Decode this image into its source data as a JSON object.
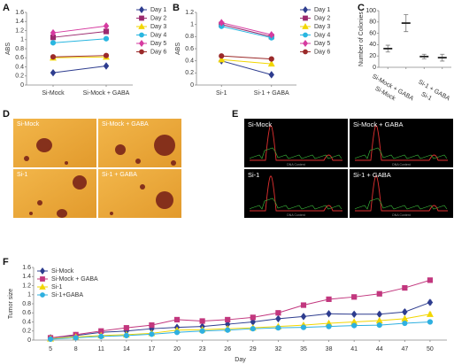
{
  "chart_data": [
    {
      "type": "line",
      "panel_label": "A",
      "y_label": "ABS",
      "categories": [
        "Si-Mock",
        "Si-Mock + GABA"
      ],
      "ylim": [
        0,
        1.6
      ],
      "yticks": [
        0,
        0.2,
        0.4,
        0.6,
        0.8,
        1,
        1.2,
        1.4,
        1.6
      ],
      "legend": "outside right",
      "series": [
        {
          "name": "Day 1",
          "color": "#2e3d8f",
          "marker": "diamond",
          "values": [
            0.27,
            0.42
          ]
        },
        {
          "name": "Day 2",
          "color": "#9b2a6e",
          "marker": "square",
          "values": [
            1.05,
            1.18
          ]
        },
        {
          "name": "Day 3",
          "color": "#f2d600",
          "marker": "triangle",
          "values": [
            0.6,
            0.62
          ]
        },
        {
          "name": "Day 4",
          "color": "#29b6e0",
          "marker": "circle",
          "values": [
            0.93,
            1.02
          ]
        },
        {
          "name": "Day 5",
          "color": "#d63ba0",
          "marker": "diamond",
          "values": [
            1.15,
            1.3
          ]
        },
        {
          "name": "Day 6",
          "color": "#9b2a2a",
          "marker": "circle",
          "values": [
            0.62,
            0.65
          ]
        }
      ]
    },
    {
      "type": "line",
      "panel_label": "B",
      "y_label": "ABS",
      "categories": [
        "Si-1",
        "Si-1 + GABA"
      ],
      "ylim": [
        0,
        1.2
      ],
      "yticks": [
        0,
        0.2,
        0.4,
        0.6,
        0.8,
        1,
        1.2
      ],
      "legend": "outside right",
      "series": [
        {
          "name": "Day 1",
          "color": "#2e3d8f",
          "marker": "diamond",
          "values": [
            0.4,
            0.17
          ]
        },
        {
          "name": "Day 2",
          "color": "#9b2a6e",
          "marker": "square",
          "values": [
            1.0,
            0.8
          ]
        },
        {
          "name": "Day 3",
          "color": "#f2d600",
          "marker": "triangle",
          "values": [
            0.42,
            0.35
          ]
        },
        {
          "name": "Day 4",
          "color": "#29b6e0",
          "marker": "circle",
          "values": [
            0.97,
            0.78
          ]
        },
        {
          "name": "Day 5",
          "color": "#d63ba0",
          "marker": "diamond",
          "values": [
            1.03,
            0.83
          ]
        },
        {
          "name": "Day 6",
          "color": "#9b2a2a",
          "marker": "circle",
          "values": [
            0.48,
            0.43
          ]
        }
      ]
    },
    {
      "type": "errorbar",
      "panel_label": "C",
      "y_label": "Number of Colonies",
      "categories": [
        "Si-Mock",
        "Si-Mock + GABA",
        "Si-1",
        "Si-1 + GABA"
      ],
      "values": [
        33,
        78,
        19,
        17
      ],
      "errors": [
        6,
        15,
        4,
        6
      ],
      "color": "#222222",
      "ylim": [
        0,
        100
      ],
      "yticks": [
        0,
        20,
        40,
        60,
        80,
        100
      ]
    },
    {
      "type": "line",
      "panel_label": "F",
      "y_label": "Tumor size",
      "x_label": "Day",
      "x": [
        5,
        8,
        11,
        14,
        17,
        20,
        23,
        26,
        29,
        32,
        35,
        38,
        41,
        44,
        47,
        50
      ],
      "xlim": [
        3,
        52
      ],
      "xticks": [
        5,
        8,
        11,
        14,
        17,
        20,
        23,
        26,
        29,
        32,
        35,
        38,
        41,
        44,
        47,
        50
      ],
      "ylim": [
        0,
        1.6
      ],
      "yticks": [
        0,
        0.2,
        0.4,
        0.6,
        0.8,
        1,
        1.2,
        1.4,
        1.6
      ],
      "legend": "upper left",
      "series": [
        {
          "name": "Si-Mock",
          "color": "#2e3d8f",
          "marker": "diamond",
          "values": [
            0.05,
            0.1,
            0.17,
            0.2,
            0.25,
            0.28,
            0.3,
            0.35,
            0.4,
            0.47,
            0.52,
            0.58,
            0.57,
            0.57,
            0.62,
            0.83
          ],
          "errors": [
            0.03,
            0.03,
            0.04,
            0.04,
            0.04,
            0.04,
            0.04,
            0.04,
            0.04,
            0.04,
            0.04,
            0.04,
            0.04,
            0.04,
            0.05,
            0.05
          ]
        },
        {
          "name": "Si-Mock + GABA",
          "color": "#c2377e",
          "marker": "square",
          "values": [
            0.05,
            0.12,
            0.2,
            0.27,
            0.33,
            0.45,
            0.42,
            0.45,
            0.5,
            0.6,
            0.77,
            0.9,
            0.95,
            1.02,
            1.15,
            1.32
          ],
          "errors": [
            0.03,
            0.03,
            0.04,
            0.04,
            0.04,
            0.04,
            0.04,
            0.04,
            0.04,
            0.04,
            0.04,
            0.04,
            0.04,
            0.04,
            0.05,
            0.05
          ]
        },
        {
          "name": "Si-1",
          "color": "#f2d600",
          "marker": "triangle",
          "values": [
            0.03,
            0.07,
            0.1,
            0.12,
            0.15,
            0.22,
            0.23,
            0.25,
            0.27,
            0.3,
            0.33,
            0.37,
            0.4,
            0.43,
            0.47,
            0.57
          ],
          "errors": [
            0.02,
            0.03,
            0.03,
            0.03,
            0.03,
            0.03,
            0.03,
            0.03,
            0.03,
            0.03,
            0.03,
            0.03,
            0.03,
            0.03,
            0.04,
            0.04
          ]
        },
        {
          "name": "Si-1+GABA",
          "color": "#2fb0e0",
          "marker": "circle",
          "values": [
            0.02,
            0.05,
            0.08,
            0.1,
            0.13,
            0.17,
            0.2,
            0.22,
            0.25,
            0.27,
            0.28,
            0.3,
            0.32,
            0.33,
            0.37,
            0.4
          ],
          "errors": [
            0.02,
            0.02,
            0.03,
            0.03,
            0.03,
            0.03,
            0.03,
            0.03,
            0.03,
            0.03,
            0.03,
            0.03,
            0.03,
            0.03,
            0.03,
            0.03
          ]
        }
      ]
    }
  ],
  "images": [
    {
      "panel_label": "D",
      "labels": [
        "Si-Mock",
        "Si-Mock + GABA",
        "Si-1",
        "Si-1 + GABA"
      ]
    },
    {
      "panel_label": "E",
      "labels": [
        "Si-Mock",
        "Si-Mock + GABA",
        "Si-1",
        "Si-1 + GABA"
      ],
      "x_label": "DNA Content"
    }
  ]
}
